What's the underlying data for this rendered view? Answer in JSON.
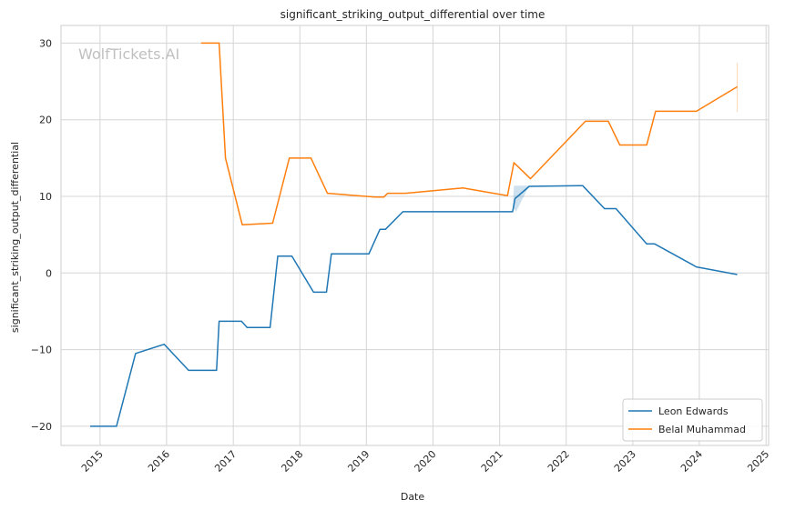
{
  "watermark": "WolfTickets.AI",
  "chart_data": {
    "type": "line",
    "title": "significant_striking_output_differential over time",
    "xlabel": "Date",
    "ylabel": "significant_striking_output_differential",
    "x_ticks": [
      "2015",
      "2016",
      "2017",
      "2018",
      "2019",
      "2020",
      "2021",
      "2022",
      "2023",
      "2024",
      "2025"
    ],
    "y_ticks": [
      -20,
      -10,
      0,
      10,
      20,
      30
    ],
    "xlim": [
      "2014-06-01",
      "2025-01-15"
    ],
    "ylim": [
      -22.5,
      32.3
    ],
    "grid": true,
    "legend_position": "lower-right",
    "series": [
      {
        "name": "Leon Edwards",
        "color": "#1f77b4",
        "points": [
          [
            "2014-11-08",
            -20
          ],
          [
            "2015-04-01",
            -20
          ],
          [
            "2015-07-15",
            -10.5
          ],
          [
            "2015-12-19",
            -9.3
          ],
          [
            "2016-05-01",
            -12.7
          ],
          [
            "2016-10-01",
            -12.7
          ],
          [
            "2016-10-15",
            -6.3
          ],
          [
            "2017-02-15",
            -6.3
          ],
          [
            "2017-03-18",
            -7.1
          ],
          [
            "2017-07-22",
            -7.1
          ],
          [
            "2017-09-02",
            2.2
          ],
          [
            "2017-11-18",
            2.2
          ],
          [
            "2018-03-17",
            -2.5
          ],
          [
            "2018-05-27",
            -2.5
          ],
          [
            "2018-06-23",
            2.5
          ],
          [
            "2019-01-15",
            2.5
          ],
          [
            "2019-03-16",
            5.7
          ],
          [
            "2019-04-15",
            5.7
          ],
          [
            "2019-07-20",
            8.0
          ],
          [
            "2021-03-13",
            8.0
          ],
          [
            "2021-03-26",
            9.7
          ],
          [
            "2021-06-12",
            11.3
          ],
          [
            "2022-04-01",
            11.4
          ],
          [
            "2022-07-30",
            8.4
          ],
          [
            "2022-10-01",
            8.4
          ],
          [
            "2023-03-18",
            3.8
          ],
          [
            "2023-05-01",
            3.8
          ],
          [
            "2023-12-16",
            0.8
          ],
          [
            "2024-07-27",
            -0.2
          ]
        ]
      },
      {
        "name": "Belal Muhammad",
        "color": "#ff7f0e",
        "points": [
          [
            "2016-07-08",
            30
          ],
          [
            "2016-10-15",
            30
          ],
          [
            "2016-11-19",
            15
          ],
          [
            "2017-02-19",
            6.3
          ],
          [
            "2017-08-05",
            6.5
          ],
          [
            "2017-11-04",
            15
          ],
          [
            "2018-03-03",
            15
          ],
          [
            "2018-06-01",
            10.4
          ],
          [
            "2019-02-17",
            9.9
          ],
          [
            "2019-04-06",
            9.9
          ],
          [
            "2019-04-27",
            10.4
          ],
          [
            "2019-08-03",
            10.4
          ],
          [
            "2020-06-13",
            11.1
          ],
          [
            "2021-02-13",
            10.1
          ],
          [
            "2021-03-20",
            14.4
          ],
          [
            "2021-06-19",
            12.3
          ],
          [
            "2022-04-16",
            19.8
          ],
          [
            "2022-08-20",
            19.8
          ],
          [
            "2022-10-22",
            16.7
          ],
          [
            "2023-03-18",
            16.7
          ],
          [
            "2023-05-06",
            21.1
          ],
          [
            "2023-12-16",
            21.1
          ],
          [
            "2024-07-27",
            24.3
          ]
        ]
      }
    ]
  }
}
